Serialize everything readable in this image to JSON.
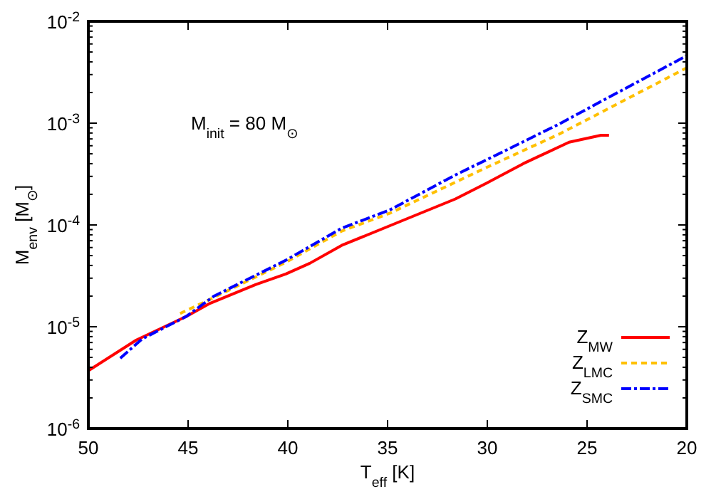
{
  "chart_data": {
    "type": "line",
    "xlabel": "T$_{eff}$ [K]",
    "ylabel": "M$_{env}$ [M$_{⊙}$]",
    "annotations": [
      "M$_{init}$ = 80 M$_{⊙}$"
    ],
    "xlim": [
      50,
      20
    ],
    "xticks": [
      50,
      45,
      40,
      35,
      30,
      25,
      20
    ],
    "ylim": [
      1e-06,
      0.01
    ],
    "yticks": [
      {
        "value": 1e-06,
        "label": "10$^{-6}$"
      },
      {
        "value": 1e-05,
        "label": "10$^{-5}$"
      },
      {
        "value": 0.0001,
        "label": "10$^{-4}$"
      },
      {
        "value": 0.001,
        "label": "10$^{-3}$"
      },
      {
        "value": 0.01,
        "label": "10$^{-2}$"
      }
    ],
    "log": "y",
    "grid": false,
    "legend": "bottom right",
    "series": [
      {
        "name": "Z$_{MW}$",
        "color": "#ff0000",
        "line_style": "solid",
        "x": [
          50,
          47.6,
          45.1,
          43.9,
          41.6,
          40.1,
          38.9,
          37.3,
          34.9,
          31.6,
          30,
          28.2,
          25.9,
          24.3,
          23.9
        ],
        "values": [
          3.7e-06,
          7.4e-06,
          1.26e-05,
          1.7e-05,
          2.6e-05,
          3.3e-05,
          4.2e-05,
          6.3e-05,
          9.8e-05,
          0.00018,
          0.00026,
          0.0004,
          0.00065,
          0.00076,
          0.00076
        ]
      },
      {
        "name": "Z$_{LMC}$",
        "color": "#ffc000",
        "line_style": "dashed",
        "x": [
          45.4,
          43.8,
          40.1,
          37.3,
          34.9,
          30,
          26.4,
          23.9,
          20
        ],
        "values": [
          1.35e-05,
          1.9e-05,
          4.3e-05,
          8.7e-05,
          0.00013,
          0.00037,
          0.00078,
          0.0014,
          0.0035
        ]
      },
      {
        "name": "Z$_{SMC}$",
        "color": "#0000ff",
        "line_style": "dashdot",
        "x": [
          48.4,
          47.3,
          45.1,
          43.7,
          40.1,
          37.3,
          34.9,
          31.6,
          30,
          26.4,
          23.9,
          20
        ],
        "values": [
          4.9e-06,
          7.6e-06,
          1.26e-05,
          2e-05,
          4.5e-05,
          9.3e-05,
          0.00014,
          0.00031,
          0.00044,
          0.00098,
          0.0018,
          0.0046
        ]
      }
    ]
  }
}
